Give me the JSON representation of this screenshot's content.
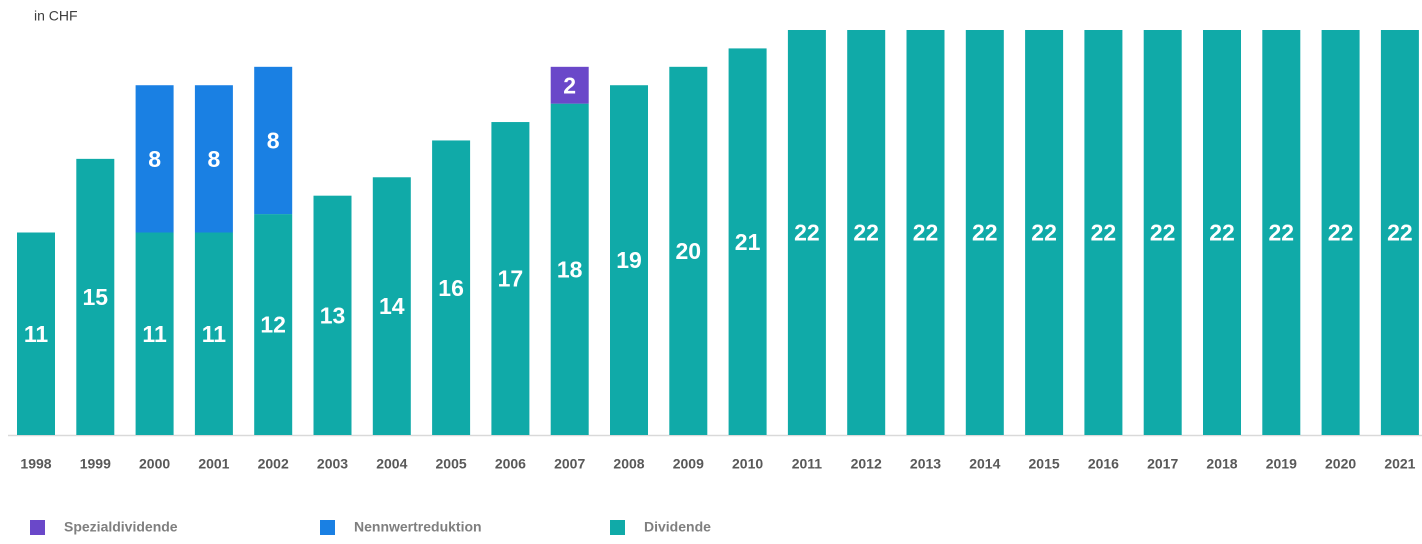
{
  "chart_data": {
    "type": "stacked_bar",
    "unit_label": "in CHF",
    "categories": [
      "1998",
      "1999",
      "2000",
      "2001",
      "2002",
      "2003",
      "2004",
      "2005",
      "2006",
      "2007",
      "2008",
      "2009",
      "2010",
      "2011",
      "2012",
      "2013",
      "2014",
      "2015",
      "2016",
      "2017",
      "2018",
      "2019",
      "2020",
      "2021"
    ],
    "series": [
      {
        "name": "Dividende",
        "color": "#10aaa8",
        "values": [
          11,
          15,
          11,
          11,
          12,
          13,
          14,
          16,
          17,
          18,
          19,
          20,
          21,
          22,
          22,
          22,
          22,
          22,
          22,
          22,
          22,
          22,
          22,
          22
        ]
      },
      {
        "name": "Nennwertreduktion",
        "color": "#1a80e3",
        "values": [
          null,
          null,
          8,
          8,
          8,
          null,
          null,
          null,
          null,
          null,
          null,
          null,
          null,
          null,
          null,
          null,
          null,
          null,
          null,
          null,
          null,
          null,
          null,
          null
        ]
      },
      {
        "name": "Spezialdividende",
        "color": "#6a48c9",
        "values": [
          null,
          null,
          null,
          null,
          null,
          null,
          null,
          null,
          null,
          2,
          null,
          null,
          null,
          null,
          null,
          null,
          null,
          null,
          null,
          null,
          null,
          null,
          null,
          null
        ]
      }
    ],
    "ylim": [
      0,
      22
    ]
  }
}
